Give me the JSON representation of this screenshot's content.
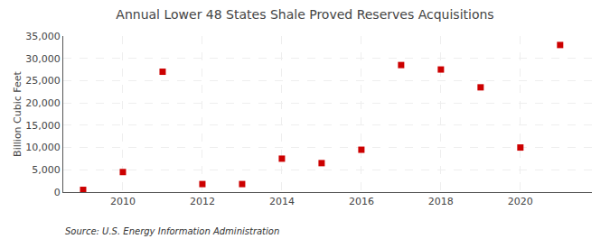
{
  "chart_data": {
    "type": "scatter",
    "title": "Annual Lower 48 States Shale Proved Reserves Acquisitions",
    "y_label": "Billion Cubic Feet",
    "annotations": [
      "Source: U.S. Energy Information Administration"
    ],
    "x": [
      2009,
      2010,
      2011,
      2012,
      2013,
      2014,
      2015,
      2016,
      2017,
      2018,
      2019,
      2020,
      2021
    ],
    "values": [
      500,
      4500,
      27000,
      1800,
      1800,
      7500,
      6500,
      9500,
      28500,
      27500,
      23500,
      10000,
      33000
    ],
    "color": "#cc0000",
    "marker": "square",
    "xlim": [
      2008.5,
      2021.8
    ],
    "xticks": [
      2010,
      2012,
      2014,
      2016,
      2018,
      2020
    ],
    "ylim": [
      0,
      35000
    ],
    "yticks": [
      0,
      {
        "value": 5000,
        "label": "5,000"
      },
      {
        "value": 10000,
        "label": "10,000"
      },
      {
        "value": 15000,
        "label": "15,000"
      },
      {
        "value": 20000,
        "label": "20,000"
      },
      {
        "value": 25000,
        "label": "25,000"
      },
      {
        "value": 30000,
        "label": "30,000"
      },
      {
        "value": 35000,
        "label": "35,000"
      }
    ],
    "grid": true
  }
}
